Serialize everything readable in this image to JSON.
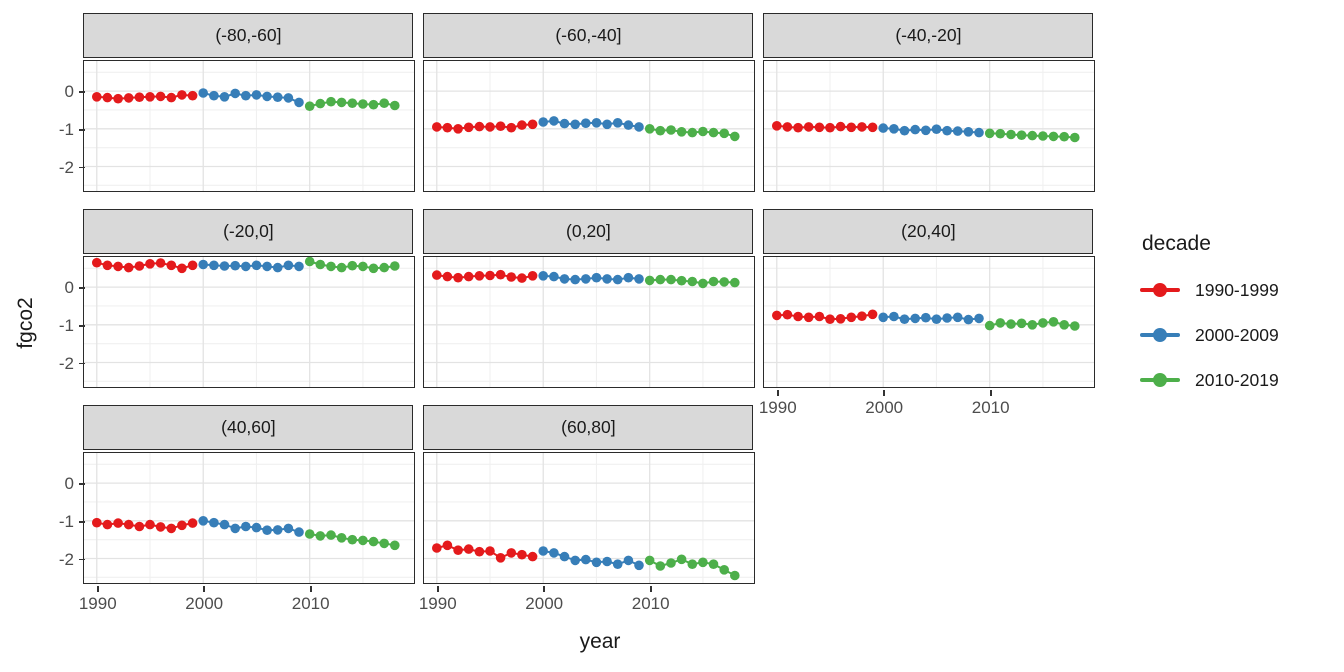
{
  "chart_data": {
    "type": "line",
    "title": "",
    "xlabel": "year",
    "ylabel": "fgco2",
    "x_ticks": [
      1990,
      2000,
      2010
    ],
    "x_minor_ticks": [
      1995,
      2005,
      2015
    ],
    "y_ticks": [
      0,
      -1,
      -2
    ],
    "y_minor_ticks": [
      0.5,
      -0.5,
      -1.5,
      -2.5
    ],
    "xlim": [
      1988.8,
      2019.8
    ],
    "ylim": [
      -2.65,
      0.8
    ],
    "grid": "on",
    "legend": {
      "title": "decade",
      "position": "right",
      "entries": [
        {
          "label": "1990-1999",
          "color": "#E41A1C"
        },
        {
          "label": "2000-2009",
          "color": "#377EB8"
        },
        {
          "label": "2010-2019",
          "color": "#4DAF4A"
        }
      ]
    },
    "series_start_years": {
      "1990-1999": 1990,
      "2000-2009": 2000,
      "2010-2019": 2010
    },
    "facets": [
      {
        "label": "(-80,-60]",
        "series": {
          "1990-1999": [
            -0.15,
            -0.17,
            -0.2,
            -0.18,
            -0.16,
            -0.15,
            -0.14,
            -0.17,
            -0.1,
            -0.12
          ],
          "2000-2009": [
            -0.05,
            -0.12,
            -0.15,
            -0.06,
            -0.12,
            -0.1,
            -0.14,
            -0.16,
            -0.18,
            -0.3
          ],
          "2010-2019": [
            -0.4,
            -0.33,
            -0.28,
            -0.3,
            -0.32,
            -0.34,
            -0.36,
            -0.32,
            -0.38
          ]
        }
      },
      {
        "label": "(-60,-40]",
        "series": {
          "1990-1999": [
            -0.95,
            -0.97,
            -1.0,
            -0.96,
            -0.94,
            -0.95,
            -0.93,
            -0.97,
            -0.9,
            -0.88
          ],
          "2000-2009": [
            -0.82,
            -0.79,
            -0.86,
            -0.88,
            -0.85,
            -0.84,
            -0.88,
            -0.84,
            -0.9,
            -0.95
          ],
          "2010-2019": [
            -1.0,
            -1.05,
            -1.03,
            -1.08,
            -1.1,
            -1.07,
            -1.1,
            -1.12,
            -1.2
          ]
        }
      },
      {
        "label": "(-40,-20]",
        "series": {
          "1990-1999": [
            -0.92,
            -0.95,
            -0.97,
            -0.95,
            -0.96,
            -0.97,
            -0.94,
            -0.96,
            -0.95,
            -0.96
          ],
          "2000-2009": [
            -0.98,
            -1.0,
            -1.05,
            -1.02,
            -1.04,
            -1.01,
            -1.05,
            -1.06,
            -1.08,
            -1.1
          ],
          "2010-2019": [
            -1.12,
            -1.13,
            -1.15,
            -1.17,
            -1.18,
            -1.19,
            -1.2,
            -1.21,
            -1.23
          ]
        }
      },
      {
        "label": "(-20,0]",
        "series": {
          "1990-1999": [
            0.65,
            0.58,
            0.55,
            0.52,
            0.56,
            0.62,
            0.64,
            0.58,
            0.5,
            0.58
          ],
          "2000-2009": [
            0.6,
            0.58,
            0.56,
            0.57,
            0.55,
            0.58,
            0.55,
            0.52,
            0.58,
            0.55
          ],
          "2010-2019": [
            0.68,
            0.6,
            0.55,
            0.52,
            0.57,
            0.55,
            0.5,
            0.52,
            0.56
          ]
        }
      },
      {
        "label": "(0,20]",
        "series": {
          "1990-1999": [
            0.32,
            0.28,
            0.25,
            0.28,
            0.3,
            0.31,
            0.33,
            0.27,
            0.24,
            0.3
          ],
          "2000-2009": [
            0.3,
            0.28,
            0.22,
            0.2,
            0.22,
            0.25,
            0.22,
            0.2,
            0.25,
            0.22
          ],
          "2010-2019": [
            0.18,
            0.2,
            0.2,
            0.17,
            0.15,
            0.1,
            0.15,
            0.14,
            0.12
          ]
        }
      },
      {
        "label": "(20,40]",
        "series": {
          "1990-1999": [
            -0.75,
            -0.73,
            -0.78,
            -0.8,
            -0.78,
            -0.85,
            -0.84,
            -0.8,
            -0.77,
            -0.72
          ],
          "2000-2009": [
            -0.8,
            -0.78,
            -0.85,
            -0.83,
            -0.81,
            -0.85,
            -0.82,
            -0.8,
            -0.86,
            -0.83
          ],
          "2010-2019": [
            -1.02,
            -0.95,
            -0.98,
            -0.96,
            -1.0,
            -0.95,
            -0.92,
            -1.0,
            -1.03
          ]
        }
      },
      {
        "label": "(40,60]",
        "series": {
          "1990-1999": [
            -1.05,
            -1.1,
            -1.06,
            -1.1,
            -1.15,
            -1.1,
            -1.16,
            -1.2,
            -1.12,
            -1.06
          ],
          "2000-2009": [
            -1.0,
            -1.05,
            -1.1,
            -1.2,
            -1.15,
            -1.18,
            -1.25,
            -1.24,
            -1.2,
            -1.3
          ],
          "2010-2019": [
            -1.35,
            -1.4,
            -1.38,
            -1.45,
            -1.5,
            -1.52,
            -1.55,
            -1.6,
            -1.65
          ]
        }
      },
      {
        "label": "(60,80]",
        "series": {
          "1990-1999": [
            -1.72,
            -1.65,
            -1.78,
            -1.75,
            -1.82,
            -1.8,
            -1.98,
            -1.85,
            -1.9,
            -1.95
          ],
          "2000-2009": [
            -1.8,
            -1.85,
            -1.95,
            -2.05,
            -2.03,
            -2.1,
            -2.08,
            -2.15,
            -2.05,
            -2.18
          ],
          "2010-2019": [
            -2.05,
            -2.2,
            -2.12,
            -2.02,
            -2.15,
            -2.1,
            -2.15,
            -2.3,
            -2.45
          ]
        }
      }
    ],
    "style_colors": {
      "strip_background": "#d9d9d9",
      "panel_border": "#2b2b2b",
      "grid_major": "#e3e3e3",
      "grid_minor": "#f0f0f0",
      "tick_text": "#4d4d4d"
    }
  }
}
